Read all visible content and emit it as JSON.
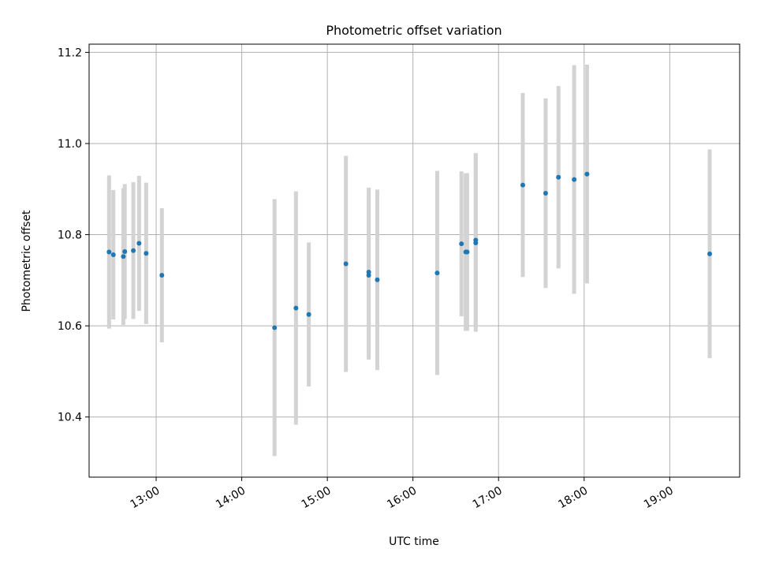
{
  "chart_data": {
    "type": "scatter",
    "title": "Photometric offset variation",
    "xlabel": "UTC time",
    "ylabel": "Photometric offset",
    "xlim": [
      "12:13",
      "19:49"
    ],
    "ylim": [
      10.268,
      11.218
    ],
    "grid": true,
    "x_ticks": [
      "13:00",
      "14:00",
      "15:00",
      "16:00",
      "17:00",
      "18:00",
      "19:00"
    ],
    "y_ticks": [
      10.4,
      10.6,
      10.8,
      11.0,
      11.2
    ],
    "y_tick_labels": [
      "10.4",
      "10.6",
      "10.8",
      "11.0",
      "11.2"
    ],
    "colors": {
      "points": "#1f77b4",
      "error_bars": "#d3d3d3",
      "grid": "#b0b0b0"
    },
    "series": [
      {
        "x": [
          "12:27",
          "12:30",
          "12:37",
          "12:38",
          "12:44",
          "12:48",
          "12:53",
          "13:04",
          "14:23",
          "14:38",
          "14:47",
          "15:13",
          "15:29",
          "15:29",
          "15:35",
          "16:17",
          "16:34",
          "16:37",
          "16:38",
          "16:44",
          "16:44",
          "17:17",
          "17:33",
          "17:42",
          "17:53",
          "18:02",
          "19:28"
        ],
        "y": [
          10.762,
          10.756,
          10.752,
          10.763,
          10.765,
          10.781,
          10.759,
          10.711,
          10.596,
          10.639,
          10.625,
          10.736,
          10.711,
          10.718,
          10.701,
          10.716,
          10.78,
          10.762,
          10.762,
          10.782,
          10.788,
          10.909,
          10.891,
          10.926,
          10.921,
          10.933,
          10.758
        ],
        "yerr": [
          0.168,
          0.142,
          0.15,
          0.148,
          0.15,
          0.148,
          0.155,
          0.147,
          0.282,
          0.256,
          0.158,
          0.237,
          0.185,
          0.185,
          0.198,
          0.224,
          0.159,
          0.173,
          0.173,
          0.195,
          0.191,
          0.202,
          0.208,
          0.2,
          0.251,
          0.24,
          0.229
        ]
      }
    ]
  }
}
